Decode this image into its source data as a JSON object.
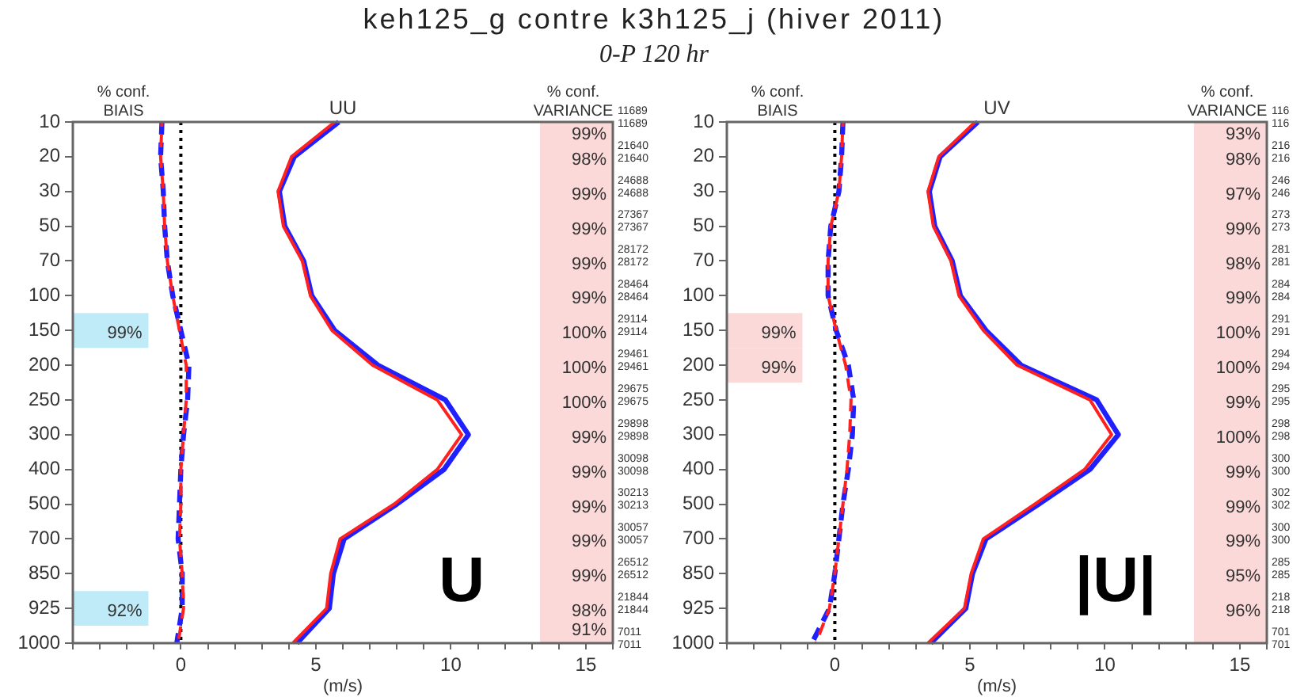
{
  "chart_data": [
    {
      "type": "line",
      "title": "keh125_g contre k3h125_j (hiver 2011)",
      "subtitle": "0-P 120 hr",
      "orientation": "horizontal",
      "xlabel": "(m/s)",
      "categories": [
        "10",
        "20",
        "30",
        "50",
        "70",
        "100",
        "150",
        "200",
        "250",
        "300",
        "400",
        "500",
        "700",
        "850",
        "925",
        "1000"
      ],
      "series": [
        {
          "color": "#2020ff",
          "line_style": "solid",
          "values": [
            5.85,
            4.2,
            3.65,
            3.85,
            4.55,
            4.85,
            5.7,
            7.3,
            9.8,
            10.65,
            9.75,
            8.0,
            6.05,
            5.65,
            5.5,
            4.3
          ]
        },
        {
          "color": "#ff2020",
          "line_style": "solid",
          "values": [
            5.7,
            4.1,
            3.6,
            3.8,
            4.5,
            4.8,
            5.6,
            7.1,
            9.5,
            10.4,
            9.5,
            7.9,
            5.9,
            5.55,
            5.4,
            4.15
          ]
        },
        {
          "color": "#2020ff",
          "line_style": "dashed",
          "values": [
            -0.7,
            -0.75,
            -0.65,
            -0.6,
            -0.5,
            -0.3,
            0.0,
            0.3,
            0.25,
            0.1,
            0.0,
            -0.05,
            -0.1,
            0.05,
            0.05,
            -0.15
          ]
        },
        {
          "color": "#ff2020",
          "line_style": "dashed",
          "values": [
            -0.7,
            -0.75,
            -0.65,
            -0.6,
            -0.5,
            -0.3,
            -0.05,
            0.2,
            0.2,
            0.1,
            0.0,
            0.0,
            -0.05,
            0.05,
            0.1,
            -0.1
          ]
        }
      ],
      "xlim": [
        -4,
        16
      ],
      "xticks": [
        {
          "value": -4,
          "label": null
        },
        {
          "value": -3,
          "label": null
        },
        {
          "value": -2,
          "label": null
        },
        {
          "value": -1,
          "label": null
        },
        0,
        {
          "value": 1,
          "label": null
        },
        {
          "value": 2,
          "label": null
        },
        {
          "value": 3,
          "label": null
        },
        {
          "value": 4,
          "label": null
        },
        5,
        {
          "value": 6,
          "label": null
        },
        {
          "value": 7,
          "label": null
        },
        {
          "value": 8,
          "label": null
        },
        {
          "value": 9,
          "label": null
        },
        10,
        {
          "value": 11,
          "label": null
        },
        {
          "value": 12,
          "label": null
        },
        {
          "value": 13,
          "label": null
        },
        {
          "value": 14,
          "label": null
        },
        15,
        {
          "value": 16,
          "label": null
        }
      ],
      "ref_lines": [
        {
          "axis": "x",
          "value": 0,
          "color": "#000000",
          "line_style": "dotted"
        }
      ],
      "bands": [
        {
          "axis": "x",
          "from": 13.3,
          "to": 16,
          "color": "#fcd9d9"
        },
        {
          "axis": "y",
          "from": "150",
          "to": "150",
          "color": "#bfeaf8",
          "label": "99%"
        },
        {
          "axis": "y",
          "from": "925",
          "to": "925",
          "color": "#bfeaf8",
          "label": "92%"
        }
      ],
      "annotations": [
        "% conf.\nBIAIS",
        "% conf.\nVARIANCE",
        "UU",
        "U",
        "11689",
        "11689",
        "21640",
        "21640",
        "24688",
        "24688",
        "27367",
        "27367",
        "28172",
        "28172",
        "28464",
        "28464",
        "29114",
        "29114",
        "29461",
        "29461",
        "29675",
        "29675",
        "29898",
        "29898",
        "30098",
        "30098",
        "30213",
        "30213",
        "30057",
        "30057",
        "26512",
        "26512",
        "21844",
        "21844",
        "7011",
        "7011",
        "99%",
        "98%",
        "99%",
        "99%",
        "99%",
        "99%",
        "100%",
        "100%",
        "100%",
        "99%",
        "99%",
        "99%",
        "99%",
        "99%",
        "98%",
        "91%"
      ]
    },
    {
      "type": "line",
      "orientation": "horizontal",
      "xlabel": "(m/s)",
      "categories": [
        "10",
        "20",
        "30",
        "50",
        "70",
        "100",
        "150",
        "200",
        "250",
        "300",
        "400",
        "500",
        "700",
        "850",
        "925",
        "1000"
      ],
      "series": [
        {
          "color": "#2020ff",
          "line_style": "solid",
          "values": [
            5.3,
            3.9,
            3.5,
            3.7,
            4.35,
            4.65,
            5.6,
            6.9,
            9.7,
            10.5,
            9.45,
            7.55,
            5.6,
            5.1,
            4.85,
            3.55
          ]
        },
        {
          "color": "#ff2020",
          "line_style": "solid",
          "values": [
            5.2,
            3.85,
            3.45,
            3.65,
            4.3,
            4.6,
            5.5,
            6.75,
            9.45,
            10.25,
            9.25,
            7.4,
            5.5,
            5.05,
            4.8,
            3.45
          ]
        },
        {
          "color": "#2020ff",
          "line_style": "dashed",
          "values": [
            0.3,
            0.25,
            0.15,
            -0.15,
            -0.25,
            -0.25,
            0.05,
            0.5,
            0.7,
            0.65,
            0.5,
            0.3,
            0.15,
            0.0,
            -0.2,
            -0.85
          ]
        },
        {
          "color": "#ff2020",
          "line_style": "dashed",
          "values": [
            0.3,
            0.25,
            0.15,
            -0.15,
            -0.25,
            -0.25,
            0.05,
            0.4,
            0.6,
            0.55,
            0.45,
            0.3,
            0.15,
            0.0,
            -0.2,
            -0.7
          ]
        }
      ],
      "xlim": [
        -4,
        16
      ],
      "xticks": [
        {
          "value": -4,
          "label": null
        },
        {
          "value": -3,
          "label": null
        },
        {
          "value": -2,
          "label": null
        },
        {
          "value": -1,
          "label": null
        },
        0,
        {
          "value": 1,
          "label": null
        },
        {
          "value": 2,
          "label": null
        },
        {
          "value": 3,
          "label": null
        },
        {
          "value": 4,
          "label": null
        },
        5,
        {
          "value": 6,
          "label": null
        },
        {
          "value": 7,
          "label": null
        },
        {
          "value": 8,
          "label": null
        },
        {
          "value": 9,
          "label": null
        },
        10,
        {
          "value": 11,
          "label": null
        },
        {
          "value": 12,
          "label": null
        },
        {
          "value": 13,
          "label": null
        },
        {
          "value": 14,
          "label": null
        },
        15,
        {
          "value": 16,
          "label": null
        }
      ],
      "ref_lines": [
        {
          "axis": "x",
          "value": 0,
          "color": "#000000",
          "line_style": "dotted"
        }
      ],
      "bands": [
        {
          "axis": "x",
          "from": 13.3,
          "to": 16,
          "color": "#fcd9d9"
        },
        {
          "axis": "y",
          "from": "150",
          "to": "150",
          "color": "#fcd9d9",
          "label": "99%"
        },
        {
          "axis": "y",
          "from": "200",
          "to": "200",
          "color": "#fcd9d9",
          "label": "99%"
        }
      ],
      "annotations": [
        "% conf.\nBIAIS",
        "% conf.\nVARIANCE",
        "UV",
        "|U|",
        "116",
        "116",
        "216",
        "216",
        "246",
        "246",
        "273",
        "273",
        "281",
        "281",
        "284",
        "284",
        "291",
        "291",
        "294",
        "294",
        "295",
        "295",
        "298",
        "298",
        "300",
        "300",
        "302",
        "302",
        "300",
        "300",
        "285",
        "285",
        "218",
        "218",
        "701",
        "701",
        "93%",
        "98%",
        "97%",
        "99%",
        "98%",
        "99%",
        "100%",
        "100%",
        "99%",
        "100%",
        "99%",
        "99%",
        "99%",
        "95%",
        "96%"
      ]
    }
  ]
}
